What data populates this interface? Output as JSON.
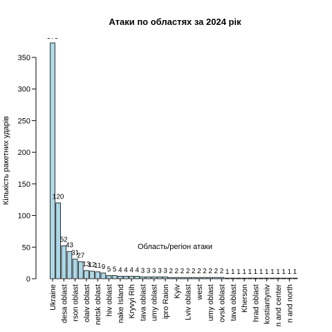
{
  "chart_data": {
    "type": "bar",
    "title": "Атаки по областях за 2024 рік",
    "y_label": "Кількість ракетних ударів",
    "x_label": "Область/регіон атаки",
    "color": "#add8e6",
    "categories": [
      "Ukraine",
      null,
      "desa oblast",
      null,
      "rson oblast",
      null,
      "olaiv oblast",
      null,
      "netsk oblast",
      null,
      "hiv oblast",
      null,
      "nake Island",
      null,
      "Kryvyi Rih",
      null,
      "tava oblast",
      null,
      "umy oblast",
      null,
      "ipro Raion",
      null,
      "Kyiv",
      null,
      "Lviv oblast",
      null,
      "west",
      null,
      "umy oblast",
      null,
      "ovsk oblast",
      null,
      "tava oblast",
      null,
      "Kherson",
      null,
      "hrad oblast",
      null,
      "kostiantyniv",
      null,
      "n and center",
      null,
      "n and north",
      null
    ],
    "values": [
      373,
      120,
      52,
      43,
      31,
      27,
      13,
      12,
      11,
      9,
      5,
      5,
      4,
      4,
      4,
      4,
      3,
      3,
      3,
      3,
      3,
      2,
      2,
      2,
      2,
      2,
      2,
      2,
      2,
      2,
      2,
      1,
      1,
      1,
      1,
      1,
      1,
      1,
      1,
      1,
      1,
      1,
      1,
      1
    ],
    "ylim": [
      0,
      380
    ],
    "yticks": [
      0,
      50,
      100,
      150,
      200,
      250,
      300,
      350
    ]
  }
}
